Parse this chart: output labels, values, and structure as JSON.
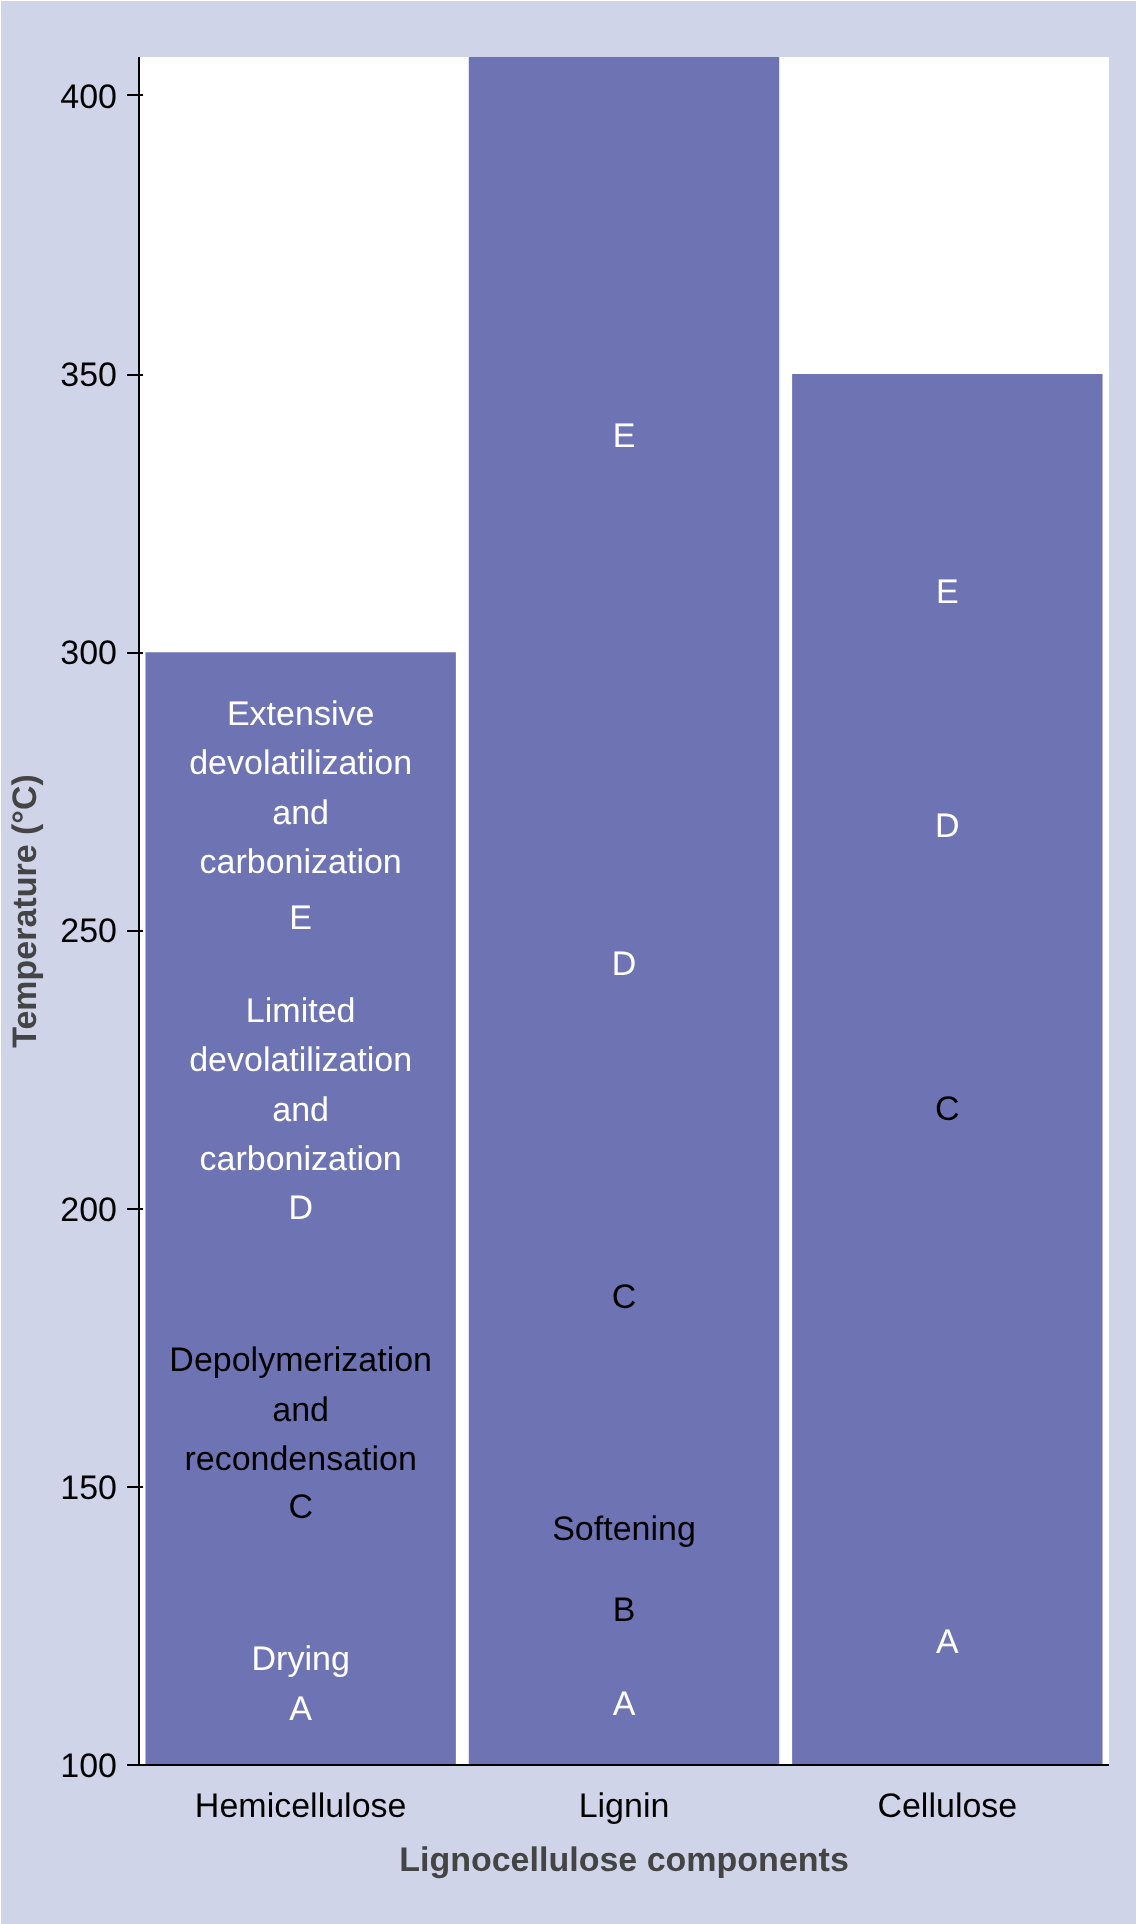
{
  "chart_data": {
    "type": "bar",
    "xlabel": "Lignocellulose components",
    "ylabel": "Temperature (°C)",
    "categories": [
      "Hemicellulose",
      "Lignin",
      "Cellulose"
    ],
    "values": [
      300,
      407,
      350
    ],
    "color": "#6e73b3",
    "ylim": [
      100,
      407
    ],
    "yticks": [
      100,
      150,
      200,
      250,
      300,
      350,
      400
    ],
    "grid": false,
    "annotations": [
      "Extensive\ndevolatilization\nand\ncarbonization",
      "E",
      "Limited\ndevolatilization\nand\ncarbonization",
      "D",
      "Depolymerization\nand\nrecondensation",
      "C",
      "Drying",
      "A",
      "E",
      "D",
      "C",
      "Softening",
      "B",
      "A",
      "E",
      "D",
      "C",
      "A"
    ]
  }
}
